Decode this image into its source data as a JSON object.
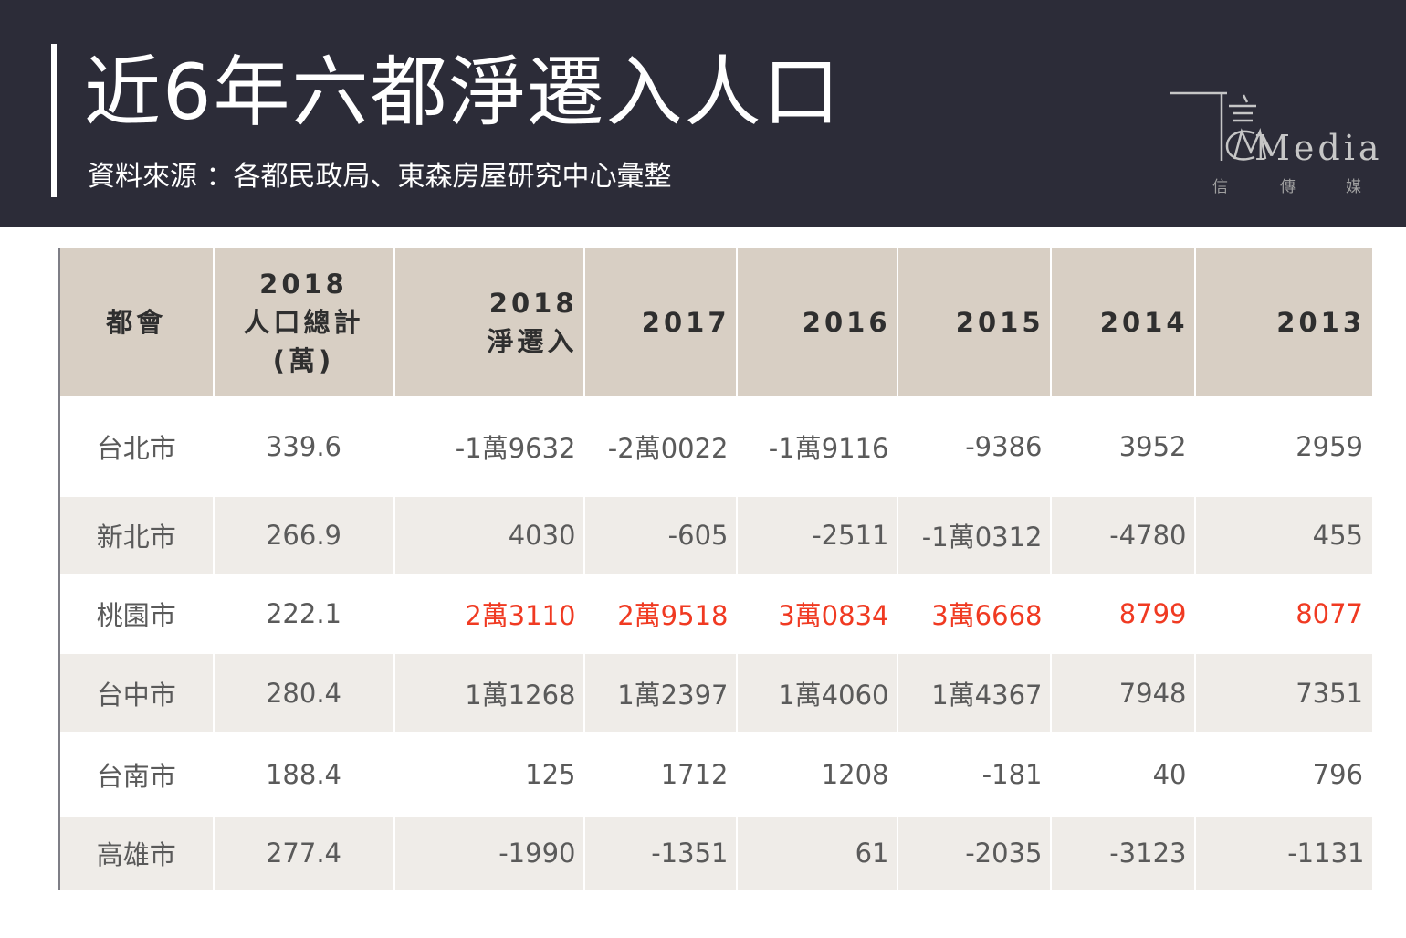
{
  "header": {
    "title": "近6年六都淨遷入人口",
    "source": "資料來源 ：各都民政局、東森房屋研究中心彙整",
    "logo": {
      "text": "Media",
      "sub": [
        "信",
        "傳",
        "媒"
      ]
    }
  },
  "colors": {
    "header_bg": "#2c2c38",
    "table_header_bg": "#d8cfc4",
    "row_shade": "#efece8",
    "highlight": "#f03a22"
  },
  "chart_data": {
    "type": "table",
    "columns": [
      "都會",
      "2018 人口總計 (萬)",
      "2018 淨遷入",
      "2017",
      "2016",
      "2015",
      "2014",
      "2013"
    ],
    "header_lines": [
      [
        "都會"
      ],
      [
        "2018",
        "人口總計",
        "(萬)"
      ],
      [
        "2018",
        "淨遷入"
      ],
      [
        "2017"
      ],
      [
        "2016"
      ],
      [
        "2015"
      ],
      [
        "2014"
      ],
      [
        "2013"
      ]
    ],
    "rows": [
      {
        "cells": [
          "台北市",
          "339.6",
          "-1萬9632",
          "-2萬0022",
          "-1萬9116",
          "-9386",
          "3952",
          "2959"
        ],
        "highlight": false,
        "shade": false
      },
      {
        "cells": [
          "新北市",
          "266.9",
          "4030",
          "-605",
          "-2511",
          "-1萬0312",
          "-4780",
          "455"
        ],
        "highlight": false,
        "shade": true
      },
      {
        "cells": [
          "桃園市",
          "222.1",
          "2萬3110",
          "2萬9518",
          "3萬0834",
          "3萬6668",
          "8799",
          "8077"
        ],
        "highlight": true,
        "shade": false
      },
      {
        "cells": [
          "台中市",
          "280.4",
          "1萬1268",
          "1萬2397",
          "1萬4060",
          "1萬4367",
          "7948",
          "7351"
        ],
        "highlight": false,
        "shade": true
      },
      {
        "cells": [
          "台南市",
          "188.4",
          "125",
          "1712",
          "1208",
          "-181",
          "40",
          "796"
        ],
        "highlight": false,
        "shade": false
      },
      {
        "cells": [
          "高雄市",
          "277.4",
          "-1990",
          "-1351",
          "61",
          "-2035",
          "-3123",
          "-1131"
        ],
        "highlight": false,
        "shade": true
      }
    ]
  }
}
